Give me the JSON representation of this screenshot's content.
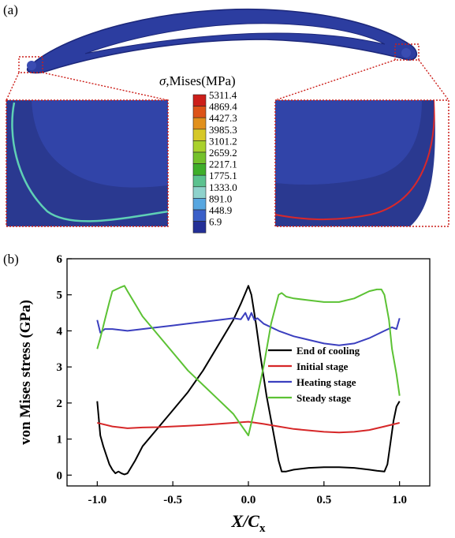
{
  "figure": {
    "panel_a_label": "(a)",
    "panel_b_label": "(b)"
  },
  "panel_a": {
    "colorbar": {
      "title_symbol": "σ",
      "title_text": ",Mises(MPa)",
      "levels": [
        "5311.4",
        "4869.4",
        "4427.3",
        "3985.3",
        "3101.2",
        "2659.2",
        "2217.1",
        "1775.1",
        "1333.0",
        "891.0",
        "448.9",
        "6.9"
      ],
      "colors": [
        "#cc1f1a",
        "#dd5318",
        "#e1901c",
        "#d6c827",
        "#a9d12c",
        "#74c12b",
        "#3fae2a",
        "#5bc28f",
        "#8ed2cc",
        "#57a6e0",
        "#3a5fc8",
        "#232f96"
      ]
    },
    "field_color": "#2a3a9e",
    "left_curve_color": "#5fd0b5",
    "right_curve_color": "#d8282b",
    "zoom_box_color": "#cc1f1a"
  },
  "chart_data": {
    "type": "line",
    "xlabel": "X/C",
    "xlabel_sub": "x",
    "ylabel": "von Mises stress (GPa)",
    "xlim": [
      -1.2,
      1.2
    ],
    "ylim": [
      -0.3,
      6
    ],
    "xticks": [
      -1.0,
      -0.5,
      0.0,
      0.5,
      1.0
    ],
    "xtick_labels": [
      "-1.0",
      "-0.5",
      "0.0",
      "0.5",
      "1.0"
    ],
    "yticks": [
      0,
      1,
      2,
      3,
      4,
      5,
      6
    ],
    "ytick_labels": [
      "0",
      "1",
      "2",
      "3",
      "4",
      "5",
      "6"
    ],
    "legend_position": "right",
    "series": [
      {
        "name": "End of cooling",
        "color": "#000000",
        "x": [
          -1.0,
          -0.98,
          -0.96,
          -0.94,
          -0.92,
          -0.9,
          -0.88,
          -0.86,
          -0.84,
          -0.82,
          -0.8,
          -0.75,
          -0.7,
          -0.6,
          -0.5,
          -0.4,
          -0.3,
          -0.2,
          -0.1,
          -0.05,
          -0.02,
          0.0,
          0.02,
          0.05,
          0.08,
          0.12,
          0.16,
          0.2,
          0.22,
          0.25,
          0.3,
          0.4,
          0.5,
          0.6,
          0.7,
          0.8,
          0.85,
          0.9,
          0.92,
          0.94,
          0.96,
          0.98,
          1.0
        ],
        "y": [
          2.05,
          1.1,
          0.8,
          0.55,
          0.3,
          0.15,
          0.05,
          0.1,
          0.05,
          0.02,
          0.05,
          0.4,
          0.8,
          1.3,
          1.8,
          2.3,
          2.9,
          3.6,
          4.3,
          4.75,
          5.05,
          5.25,
          5.0,
          4.2,
          3.3,
          2.2,
          1.3,
          0.4,
          0.1,
          0.1,
          0.15,
          0.2,
          0.22,
          0.22,
          0.2,
          0.15,
          0.12,
          0.1,
          0.3,
          0.9,
          1.5,
          1.9,
          2.05
        ]
      },
      {
        "name": "Initial stage",
        "color": "#d62728",
        "x": [
          -1.0,
          -0.9,
          -0.8,
          -0.7,
          -0.6,
          -0.5,
          -0.4,
          -0.3,
          -0.2,
          -0.1,
          0.0,
          0.1,
          0.2,
          0.3,
          0.4,
          0.5,
          0.6,
          0.7,
          0.8,
          0.9,
          1.0
        ],
        "y": [
          1.45,
          1.35,
          1.3,
          1.32,
          1.33,
          1.35,
          1.37,
          1.39,
          1.42,
          1.45,
          1.48,
          1.42,
          1.35,
          1.28,
          1.24,
          1.2,
          1.18,
          1.2,
          1.25,
          1.35,
          1.45
        ]
      },
      {
        "name": "Heating stage",
        "color": "#3b3fbf",
        "x": [
          -1.0,
          -0.98,
          -0.95,
          -0.9,
          -0.8,
          -0.7,
          -0.6,
          -0.5,
          -0.4,
          -0.3,
          -0.2,
          -0.1,
          -0.05,
          -0.02,
          0.0,
          0.02,
          0.04,
          0.06,
          0.1,
          0.2,
          0.3,
          0.4,
          0.5,
          0.6,
          0.7,
          0.8,
          0.9,
          0.95,
          0.98,
          1.0
        ],
        "y": [
          4.3,
          3.95,
          4.05,
          4.05,
          4.0,
          4.05,
          4.1,
          4.15,
          4.2,
          4.25,
          4.3,
          4.35,
          4.32,
          4.5,
          4.3,
          4.5,
          4.3,
          4.35,
          4.2,
          4.0,
          3.85,
          3.75,
          3.65,
          3.6,
          3.65,
          3.8,
          4.0,
          4.1,
          4.05,
          4.35
        ]
      },
      {
        "name": "Steady stage",
        "color": "#5cc234",
        "x": [
          -1.0,
          -0.98,
          -0.95,
          -0.92,
          -0.9,
          -0.85,
          -0.82,
          -0.8,
          -0.75,
          -0.7,
          -0.6,
          -0.5,
          -0.4,
          -0.3,
          -0.2,
          -0.1,
          -0.05,
          0.0,
          0.05,
          0.1,
          0.15,
          0.2,
          0.22,
          0.25,
          0.3,
          0.4,
          0.5,
          0.6,
          0.7,
          0.8,
          0.85,
          0.88,
          0.9,
          0.93,
          0.95,
          0.98,
          1.0
        ],
        "y": [
          3.5,
          3.8,
          4.3,
          4.8,
          5.1,
          5.2,
          5.25,
          5.1,
          4.75,
          4.4,
          3.9,
          3.4,
          2.9,
          2.5,
          2.1,
          1.7,
          1.4,
          1.1,
          2.0,
          3.0,
          4.2,
          5.0,
          5.05,
          4.95,
          4.9,
          4.85,
          4.8,
          4.8,
          4.9,
          5.1,
          5.15,
          5.15,
          5.0,
          4.3,
          3.5,
          2.8,
          2.2
        ]
      }
    ]
  }
}
